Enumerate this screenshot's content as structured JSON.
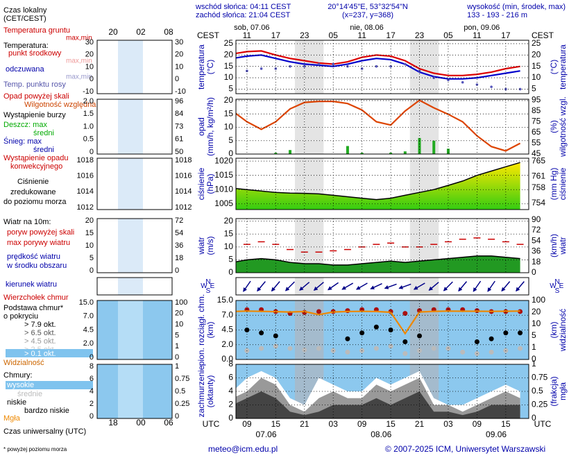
{
  "header": {
    "sunrise": "wschód słońca: 04:11 CEST",
    "sunset": "zachód słońca: 21:04 CEST",
    "coords": "20°14'45\"E, 53°32'54\"N",
    "grid_point": "(x=237, y=368)",
    "elevation_title": "wysokość (min, środek, max)",
    "elevation": "133 - 193 - 216 m"
  },
  "legend": {
    "local_time": "Czas lokalny",
    "local_time_zone": "(CET/CEST)",
    "ground_temp": "Temperatura gruntu",
    "ground_minmax": "max,min",
    "temperature": "Temperatura:",
    "temp_minmax": "max,min",
    "feel_minmax": "max,min",
    "precip_over": "Opad powyżej skali",
    "storm": "Wystąpienie burzy",
    "rain_max": "Deszcz: max",
    "snow_max": "Śnieg: max",
    "snow_mean": "średni",
    "convective1": "Wystąpienie opadu",
    "convective2": "konwekcyjnego",
    "pressure2": "zredukowane",
    "pressure3": "do poziomu morza",
    "wind": "Wiatr na 10m:",
    "gust_over": "poryw powyżej skali",
    "wind_area": "w środku obszaru",
    "cloud_base1": "Podstawa chmur*",
    "cloud_base2": "o pokryciu",
    "okt65": "> 6.5 okt.",
    "okt25": "> 2.5 okt.",
    "okt01": "> 0.1 okt.",
    "clouds": "Chmury:",
    "very_low": "bardzo niskie",
    "utc": "Czas uniwersalny (UTC)"
  },
  "legend_axes": {
    "top": [
      "20",
      "02",
      "08"
    ],
    "bottom": [
      "18",
      "00",
      "06"
    ],
    "panels": [
      {
        "left": [
          "30",
          "20",
          "10",
          "0",
          "-10"
        ],
        "right": [
          "30",
          "20",
          "10",
          "0",
          "-10"
        ]
      },
      {
        "left": [
          "2.0",
          "1.5",
          "1.0",
          "0.5",
          "0"
        ],
        "right": [
          "96",
          "84",
          "73",
          "61",
          "50"
        ]
      },
      {
        "left": [
          "1018",
          "1016",
          "1014",
          "1012"
        ],
        "right": [
          "1018",
          "1016",
          "1014",
          "1012"
        ]
      },
      {
        "left": [
          "20",
          "15",
          "10",
          "5",
          "0"
        ],
        "right": [
          "72",
          "54",
          "36",
          "18",
          "0"
        ]
      },
      {
        "left": [],
        "right": []
      },
      {
        "left": [
          "15.0",
          "7.0",
          "4.5",
          "2.0",
          "0"
        ],
        "right": [
          "100",
          "20",
          "10",
          "5",
          "1",
          "0"
        ]
      },
      {
        "left": [
          "8",
          "6",
          "4",
          "2",
          "0"
        ],
        "right": [
          "1",
          "0.75",
          "0.5",
          "0.25",
          "0"
        ]
      }
    ]
  },
  "time_axis": {
    "xlim": [
      6.7,
      67.8
    ],
    "tz_local": "CEST",
    "tz_utc": "UTC",
    "utc_ticks": [
      {
        "value": 9,
        "label": "09"
      },
      {
        "value": 15,
        "label": "15"
      },
      {
        "value": 21,
        "label": "21"
      },
      {
        "value": 27,
        "label": "03"
      },
      {
        "value": 33,
        "label": "09"
      },
      {
        "value": 39,
        "label": "15"
      },
      {
        "value": 45,
        "label": "21"
      },
      {
        "value": 51,
        "label": "03"
      },
      {
        "value": 57,
        "label": "09"
      },
      {
        "value": 63,
        "label": "15"
      }
    ],
    "cest_ticks": [
      {
        "value": 9,
        "label": "11"
      },
      {
        "value": 15,
        "label": "17"
      },
      {
        "value": 21,
        "label": "23"
      },
      {
        "value": 27,
        "label": "05"
      },
      {
        "value": 33,
        "label": "11"
      },
      {
        "value": 39,
        "label": "17"
      },
      {
        "value": 45,
        "label": "23"
      },
      {
        "value": 51,
        "label": "05"
      },
      {
        "value": 57,
        "label": "11"
      },
      {
        "value": 63,
        "label": "17"
      }
    ],
    "days": [
      {
        "value": 10,
        "label": "sob, 07.06"
      },
      {
        "value": 34,
        "label": "nie, 08.06"
      },
      {
        "value": 58,
        "label": "pon, 09.06"
      }
    ],
    "dates": [
      {
        "value": 13,
        "label": "07.06"
      },
      {
        "value": 37,
        "label": "08.06"
      },
      {
        "value": 61,
        "label": "09.06"
      }
    ],
    "night": [
      [
        19,
        25
      ],
      [
        43,
        49
      ]
    ]
  },
  "chart_data": [
    {
      "type": "line",
      "y_title": [
        "temperatura",
        "(°C)"
      ],
      "y2_title": [
        "(°C)",
        "temperatura"
      ],
      "ylim": [
        3,
        26.5
      ],
      "yticks": [
        5,
        10,
        15,
        20,
        25
      ],
      "y2lim": [
        3,
        26.5
      ],
      "y2ticks": [
        5,
        10,
        15,
        20,
        25
      ],
      "grid": true,
      "x": [
        6,
        9,
        12,
        15,
        18,
        21,
        24,
        27,
        30,
        33,
        36,
        39,
        42,
        45,
        48,
        51,
        54,
        57,
        60,
        63,
        66
      ],
      "series": [
        {
          "name": "punkt środkowy",
          "color": "#dd0000",
          "style": "line",
          "values": [
            20.5,
            21.5,
            21.8,
            20,
            18.5,
            17.5,
            16.5,
            16,
            17,
            19,
            20,
            19.5,
            17.5,
            14,
            12,
            11,
            11,
            11.5,
            12.5,
            14,
            15
          ]
        },
        {
          "name": "odczuwana",
          "color": "#0000cc",
          "style": "line",
          "values": [
            18.5,
            19.5,
            20,
            18.5,
            17,
            16,
            15.5,
            15,
            16,
            17.5,
            18.5,
            18,
            16,
            12.5,
            10.5,
            9.5,
            9.5,
            10,
            11,
            12,
            13
          ]
        },
        {
          "name": "Temp. punktu rosy",
          "color": "#5555bb",
          "style": "dots",
          "values": [
            14,
            13,
            14,
            14,
            15,
            15,
            16,
            16,
            15,
            14,
            15,
            15,
            16,
            13,
            10,
            9,
            8,
            7,
            6,
            5,
            5
          ]
        }
      ]
    },
    {
      "type": "combo",
      "y_title": [
        "opad",
        "(mm/h, kg/m²/h)"
      ],
      "y2_title": [
        "(%)",
        "wilgotność wzgl."
      ],
      "ylim": [
        0,
        20.5
      ],
      "yticks": [
        0,
        5,
        10,
        15,
        20
      ],
      "y2lim": [
        45,
        96
      ],
      "y2ticks": [
        45,
        55,
        65,
        75,
        85,
        95
      ],
      "grid": true,
      "x": [
        6,
        9,
        12,
        15,
        18,
        21,
        24,
        27,
        30,
        33,
        36,
        39,
        42,
        45,
        48,
        51,
        54,
        57,
        60,
        63,
        66
      ],
      "series": [
        {
          "name": "średni",
          "color": "#22aa22",
          "style": "bars",
          "values": [
            0,
            0,
            0,
            0.5,
            1.5,
            0,
            0,
            0,
            3,
            0.5,
            0,
            0.5,
            1,
            6,
            5,
            2,
            0,
            0,
            0,
            0,
            0
          ]
        },
        {
          "name": "Wilgotność względna",
          "color": "#dd4400",
          "style": "line",
          "axis": "y2",
          "values": [
            85,
            75,
            68,
            75,
            87,
            93,
            94,
            94,
            92,
            86,
            75,
            72,
            85,
            95,
            88,
            82,
            75,
            62,
            52,
            48,
            55
          ]
        }
      ]
    },
    {
      "type": "area",
      "y_title": [
        "ciśnienie",
        "(hPa)"
      ],
      "y2_title": [
        "(mm Hg)",
        "ciśnienie"
      ],
      "ylim": [
        1003,
        1021
      ],
      "yticks": [
        1005,
        1010,
        1015,
        1020
      ],
      "y2lim": [
        752.3,
        765.8
      ],
      "y2ticks": [
        754,
        758,
        761,
        765
      ],
      "grid": true,
      "x": [
        6,
        9,
        12,
        15,
        18,
        21,
        24,
        27,
        30,
        33,
        36,
        39,
        42,
        45,
        48,
        51,
        54,
        57,
        60,
        63,
        66
      ],
      "series": [
        {
          "name": "Ciśnienie",
          "color": "#ffe800",
          "color2": "#33cc11",
          "style": "area",
          "values": [
            1010.5,
            1010,
            1009.5,
            1009,
            1008.8,
            1008.7,
            1008.5,
            1008,
            1007.5,
            1007,
            1006.5,
            1007,
            1008,
            1009,
            1010,
            1011.5,
            1013,
            1015,
            1016.5,
            1018,
            1019.5
          ]
        }
      ]
    },
    {
      "type": "wind",
      "y_title": [
        "wiatr",
        "(m/s)"
      ],
      "y2_title": [
        "(km/h)",
        "wiatr"
      ],
      "ylim": [
        0,
        21
      ],
      "yticks": [
        0,
        5,
        10,
        15,
        20
      ],
      "y2lim": [
        0,
        92
      ],
      "y2ticks": [
        0,
        18,
        36,
        54,
        72,
        90
      ],
      "grid": true,
      "x": [
        6,
        9,
        12,
        15,
        18,
        21,
        24,
        27,
        30,
        33,
        36,
        39,
        42,
        45,
        48,
        51,
        54,
        57,
        60,
        63,
        66
      ],
      "series": [
        {
          "name": "prędkość wiatru",
          "color": "#229922",
          "style": "area",
          "values": [
            4,
            5,
            5.5,
            5,
            4,
            3.5,
            3.5,
            3,
            3,
            3.5,
            4,
            4.5,
            4,
            4.5,
            5,
            5.5,
            6,
            6.5,
            6.5,
            6,
            5.5
          ]
        },
        {
          "name": "max porywy wiatru",
          "color": "#cc0000",
          "style": "dashes",
          "values": [
            10,
            11,
            12,
            11,
            9,
            8,
            8,
            8.5,
            9,
            10,
            11,
            11.5,
            10,
            10,
            11,
            12,
            13,
            13.5,
            13,
            12,
            11
          ]
        }
      ]
    },
    {
      "type": "vector",
      "compass": [
        "N",
        "W",
        "S",
        "E"
      ],
      "x": [
        6,
        9,
        12,
        15,
        18,
        21,
        24,
        27,
        30,
        33,
        36,
        39,
        42,
        45,
        48,
        51,
        54,
        57,
        60,
        63,
        66
      ],
      "series": [
        {
          "name": "kierunek wiatru",
          "color": "#000088",
          "style": "arrows",
          "values": [
            30,
            35,
            40,
            40,
            45,
            50,
            50,
            55,
            60,
            60,
            65,
            70,
            70,
            60,
            50,
            45,
            40,
            35,
            35,
            40,
            40
          ]
        }
      ]
    },
    {
      "type": "scatter",
      "y_title": [
        "pion. rozciągł. chm.",
        "(km)"
      ],
      "y2_title": [
        "(km)",
        "widzialność"
      ],
      "y_scale": "tick-spaced",
      "y2_scale": "tick-spaced",
      "ylim": [
        0,
        15
      ],
      "yticks": [
        {
          "value": 0,
          "label": "0.0"
        },
        {
          "value": 2,
          "label": "2.0"
        },
        4.5,
        {
          "value": 7,
          "label": "7.0"
        },
        {
          "value": 15,
          "label": "15.0"
        }
      ],
      "y2lim": [
        0,
        100
      ],
      "y2ticks": [
        0,
        1,
        5,
        10,
        20,
        100
      ],
      "grid": true,
      "x": [
        6,
        9,
        12,
        15,
        18,
        21,
        24,
        27,
        30,
        33,
        36,
        39,
        42,
        45,
        48,
        51,
        54,
        57,
        60,
        63,
        66
      ],
      "series": [
        {
          "name": "Wierzchołek chmur",
          "color": "#aa1111",
          "style": "dots",
          "values": [
            9,
            10,
            10,
            9,
            8,
            8.5,
            9,
            9,
            9.5,
            10,
            10,
            9,
            8,
            9.5,
            10,
            10,
            10,
            9.5,
            9,
            9,
            9
          ]
        },
        {
          "name": "> 7.9 okt.",
          "color": "#000000",
          "style": "dots",
          "values": [
            4,
            4.5,
            4,
            3.5,
            null,
            null,
            null,
            null,
            3,
            4,
            5,
            4.5,
            2.5,
            3.5,
            null,
            null,
            null,
            2.5,
            3,
            4,
            4
          ]
        },
        {
          "name": "> 4.5 okt.",
          "color": "#bbbbbb",
          "style": "dots",
          "values": [
            1.5,
            1.2,
            1.5,
            1.8,
            1.5,
            1.3,
            1.5,
            1.2,
            1,
            1.2,
            1.5,
            1.8,
            0.8,
            1.2,
            1.5,
            1.5,
            1,
            0.8,
            1,
            1.2,
            1.5
          ]
        },
        {
          "name": "Widzialność",
          "color": "#ee8800",
          "style": "line",
          "axis": "y2",
          "values": [
            25,
            28,
            26,
            24,
            22,
            25,
            18,
            22,
            25,
            26,
            25,
            20,
            6,
            22,
            26,
            28,
            27,
            27,
            26,
            27,
            28
          ]
        }
      ]
    },
    {
      "type": "area",
      "y_title": [
        "zachmurzenie",
        "(oktanty)"
      ],
      "y2_title": [
        "(frakcja)",
        "mgła"
      ],
      "ylim": [
        0,
        8
      ],
      "yticks": [
        0,
        2,
        4,
        6,
        8
      ],
      "y2lim": [
        0,
        1
      ],
      "y2ticks": [
        0,
        0.25,
        0.5,
        0.75,
        1
      ],
      "grid": true,
      "x": [
        6,
        9,
        12,
        15,
        18,
        21,
        24,
        27,
        30,
        33,
        36,
        39,
        42,
        45,
        48,
        51,
        54,
        57,
        60,
        63,
        66
      ],
      "series": [
        {
          "name": "wysokie",
          "color": "#ffffff",
          "style": "area",
          "values": [
            4,
            6,
            7,
            6,
            3,
            2,
            6,
            5,
            4,
            4,
            6,
            5,
            6,
            7,
            3,
            2,
            2,
            3,
            4,
            5,
            4
          ]
        },
        {
          "name": "średnie",
          "color": "#999999",
          "style": "area",
          "values": [
            3,
            4,
            6,
            5,
            2,
            1,
            3,
            4,
            3,
            3,
            5,
            4,
            5,
            6,
            2,
            2,
            1,
            2,
            3,
            4,
            3
          ]
        },
        {
          "name": "niskie",
          "color": "#444444",
          "style": "area",
          "values": [
            2,
            3,
            4,
            3,
            1,
            0.5,
            1,
            2,
            2,
            2,
            3,
            2,
            3,
            4,
            1,
            1,
            0.5,
            1,
            2,
            2,
            2
          ]
        },
        {
          "name": "Mgła",
          "color": "#ee8800",
          "style": "bars",
          "axis": "y2",
          "values": [
            0,
            0,
            0,
            0,
            0,
            0,
            0,
            0,
            0,
            0,
            0,
            0,
            0,
            0,
            0,
            0,
            0,
            0,
            0,
            0,
            0
          ]
        }
      ]
    }
  ],
  "footer": {
    "note": "* powyżej poziomu morza",
    "email": "meteo@icm.edu.pl",
    "copyright": "© 2007-2025 ICM, Uniwersytet Warszawski"
  }
}
